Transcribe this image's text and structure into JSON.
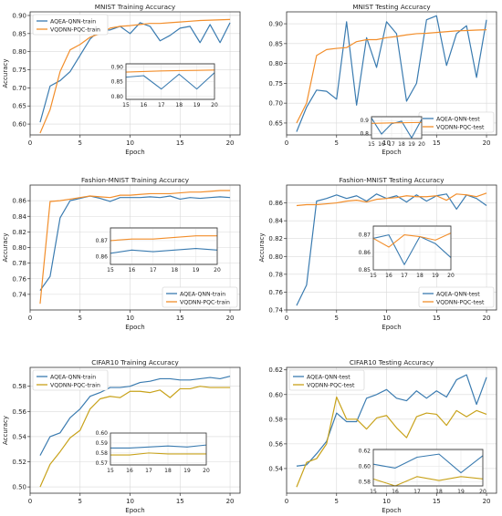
{
  "colors": {
    "aqea": "#3a7bb0",
    "vqdnn": "#f28e2b",
    "vqdnn_cifar": "#c8a21a"
  },
  "chart_data": [
    {
      "type": "line",
      "title": "MNIST Training Accuracy",
      "xlabel": "Epoch",
      "ylabel": "Accuracy",
      "xlim": [
        0,
        21
      ],
      "ylim": [
        0.57,
        0.91
      ],
      "xticks": [
        0,
        5,
        10,
        15,
        20
      ],
      "yticks": [
        0.6,
        0.65,
        0.7,
        0.75,
        0.8,
        0.85,
        0.9
      ],
      "ytick_labels": [
        "0.60",
        "0.65",
        "0.70",
        "0.75",
        "0.80",
        "0.85",
        "0.90"
      ],
      "grid": true,
      "legend_position": "upper-left",
      "x": [
        1,
        2,
        3,
        4,
        5,
        6,
        7,
        8,
        9,
        10,
        11,
        12,
        13,
        14,
        15,
        16,
        17,
        18,
        19,
        20
      ],
      "series": [
        {
          "name": "AQEA-QNN-train",
          "color": "#3a7bb0",
          "values": [
            0.605,
            0.705,
            0.72,
            0.745,
            0.79,
            0.835,
            0.86,
            0.86,
            0.87,
            0.85,
            0.88,
            0.87,
            0.83,
            0.845,
            0.865,
            0.87,
            0.825,
            0.875,
            0.825,
            0.88
          ]
        },
        {
          "name": "VQDNN-PQC-train",
          "color": "#f28e2b",
          "values": [
            0.575,
            0.64,
            0.745,
            0.805,
            0.82,
            0.84,
            0.85,
            0.865,
            0.87,
            0.872,
            0.875,
            0.878,
            0.878,
            0.88,
            0.882,
            0.884,
            0.886,
            0.887,
            0.888,
            0.889
          ]
        }
      ],
      "inset": {
        "xlim": [
          15,
          20
        ],
        "ylim": [
          0.79,
          0.91
        ],
        "xticks": [
          15,
          16,
          17,
          18,
          19,
          20
        ],
        "yticks": [
          0.8,
          0.85,
          0.9
        ],
        "ytick_labels": [
          "0.80",
          "0.85",
          "0.90"
        ]
      }
    },
    {
      "type": "line",
      "title": "MNIST Testing Accuracy",
      "xlabel": "Epoch",
      "ylabel": "",
      "xlim": [
        0,
        21
      ],
      "ylim": [
        0.62,
        0.93
      ],
      "xticks": [
        0,
        5,
        10,
        15,
        20
      ],
      "yticks": [
        0.65,
        0.7,
        0.75,
        0.8,
        0.85,
        0.9
      ],
      "ytick_labels": [
        "0.65",
        "0.70",
        "0.75",
        "0.80",
        "0.85",
        "0.90"
      ],
      "grid": true,
      "legend_position": "lower-right",
      "x": [
        1,
        2,
        3,
        4,
        5,
        6,
        7,
        8,
        9,
        10,
        11,
        12,
        13,
        14,
        15,
        16,
        17,
        18,
        19,
        20
      ],
      "series": [
        {
          "name": "AQEA-QNN-test",
          "color": "#3a7bb0",
          "values": [
            0.628,
            0.69,
            0.733,
            0.73,
            0.71,
            0.905,
            0.695,
            0.865,
            0.79,
            0.905,
            0.875,
            0.705,
            0.75,
            0.91,
            0.92,
            0.795,
            0.875,
            0.895,
            0.765,
            0.91
          ]
        },
        {
          "name": "VQDNN-PQC-test",
          "color": "#f28e2b",
          "values": [
            0.65,
            0.7,
            0.82,
            0.835,
            0.838,
            0.84,
            0.855,
            0.86,
            0.86,
            0.865,
            0.868,
            0.872,
            0.875,
            0.876,
            0.878,
            0.88,
            0.882,
            0.883,
            0.884,
            0.885
          ]
        }
      ],
      "inset": {
        "xlim": [
          15,
          20
        ],
        "ylim": [
          0.76,
          0.93
        ],
        "xticks": [
          15,
          16,
          17,
          18,
          19,
          20
        ],
        "yticks": [
          0.8,
          0.9
        ],
        "ytick_labels": [
          "0.8",
          "0.9"
        ]
      }
    },
    {
      "type": "line",
      "title": "Fashion-MNIST Training Accuracy",
      "xlabel": "Epoch",
      "ylabel": "Accuracy",
      "xlim": [
        0,
        21
      ],
      "ylim": [
        0.72,
        0.88
      ],
      "xticks": [
        0,
        5,
        10,
        15,
        20
      ],
      "yticks": [
        0.74,
        0.76,
        0.78,
        0.8,
        0.82,
        0.84,
        0.86
      ],
      "ytick_labels": [
        "0.74",
        "0.76",
        "0.78",
        "0.80",
        "0.82",
        "0.84",
        "0.86"
      ],
      "grid": true,
      "legend_position": "lower-right",
      "x": [
        1,
        2,
        3,
        4,
        5,
        6,
        7,
        8,
        9,
        10,
        11,
        12,
        13,
        14,
        15,
        16,
        17,
        18,
        19,
        20
      ],
      "series": [
        {
          "name": "AQEA-QNN-train",
          "color": "#3a7bb0",
          "values": [
            0.745,
            0.763,
            0.838,
            0.86,
            0.863,
            0.866,
            0.863,
            0.859,
            0.864,
            0.864,
            0.864,
            0.865,
            0.864,
            0.866,
            0.862,
            0.864,
            0.863,
            0.864,
            0.865,
            0.864
          ]
        },
        {
          "name": "VQDNN-PQC-train",
          "color": "#f28e2b",
          "values": [
            0.728,
            0.859,
            0.86,
            0.862,
            0.864,
            0.866,
            0.865,
            0.864,
            0.867,
            0.867,
            0.868,
            0.869,
            0.869,
            0.869,
            0.87,
            0.871,
            0.871,
            0.872,
            0.873,
            0.873
          ]
        }
      ],
      "inset": {
        "xlim": [
          15,
          20
        ],
        "ylim": [
          0.855,
          0.878
        ],
        "xticks": [
          15,
          16,
          17,
          18,
          19,
          20
        ],
        "yticks": [
          0.86,
          0.87
        ],
        "ytick_labels": [
          "0.86",
          "0.87"
        ]
      }
    },
    {
      "type": "line",
      "title": "Fashion-MNIST Testing Accuracy",
      "xlabel": "Epoch",
      "ylabel": "Accuracy",
      "xlim": [
        0,
        21
      ],
      "ylim": [
        0.74,
        0.88
      ],
      "xticks": [
        0,
        5,
        10,
        15,
        20
      ],
      "yticks": [
        0.74,
        0.76,
        0.78,
        0.8,
        0.82,
        0.84,
        0.86
      ],
      "ytick_labels": [
        "0.74",
        "0.76",
        "0.78",
        "0.80",
        "0.82",
        "0.84",
        "0.86"
      ],
      "grid": true,
      "legend_position": "lower-right",
      "x": [
        1,
        2,
        3,
        4,
        5,
        6,
        7,
        8,
        9,
        10,
        11,
        12,
        13,
        14,
        15,
        16,
        17,
        18,
        19,
        20
      ],
      "series": [
        {
          "name": "AQEA-QNN-test",
          "color": "#3a7bb0",
          "values": [
            0.745,
            0.768,
            0.862,
            0.865,
            0.869,
            0.865,
            0.868,
            0.862,
            0.87,
            0.865,
            0.868,
            0.861,
            0.869,
            0.862,
            0.868,
            0.87,
            0.853,
            0.869,
            0.865,
            0.857
          ]
        },
        {
          "name": "VQDNN-PQC-test",
          "color": "#f28e2b",
          "values": [
            0.857,
            0.858,
            0.858,
            0.859,
            0.86,
            0.862,
            0.863,
            0.861,
            0.864,
            0.865,
            0.866,
            0.868,
            0.867,
            0.867,
            0.868,
            0.863,
            0.87,
            0.869,
            0.867,
            0.871
          ]
        }
      ],
      "inset": {
        "xlim": [
          15,
          20
        ],
        "ylim": [
          0.85,
          0.875
        ],
        "xticks": [
          15,
          16,
          17,
          18,
          19,
          20
        ],
        "yticks": [
          0.85,
          0.86,
          0.87
        ],
        "ytick_labels": [
          "0.85",
          "0.86",
          "0.87"
        ]
      }
    },
    {
      "type": "line",
      "title": "CIFAR10 Training Accuracy",
      "xlabel": "Epoch",
      "ylabel": "Accuracy",
      "xlim": [
        0,
        21
      ],
      "ylim": [
        0.495,
        0.595
      ],
      "xticks": [
        0,
        5,
        10,
        15,
        20
      ],
      "yticks": [
        0.5,
        0.52,
        0.54,
        0.56,
        0.58
      ],
      "ytick_labels": [
        "0.50",
        "0.52",
        "0.54",
        "0.56",
        "0.58"
      ],
      "grid": true,
      "legend_position": "upper-left",
      "x": [
        1,
        2,
        3,
        4,
        5,
        6,
        7,
        8,
        9,
        10,
        11,
        12,
        13,
        14,
        15,
        16,
        17,
        18,
        19,
        20
      ],
      "series": [
        {
          "name": "AQEA-QNN-train",
          "color": "#3a7bb0",
          "values": [
            0.525,
            0.54,
            0.543,
            0.555,
            0.562,
            0.572,
            0.575,
            0.579,
            0.579,
            0.58,
            0.583,
            0.584,
            0.586,
            0.586,
            0.585,
            0.585,
            0.586,
            0.587,
            0.586,
            0.588
          ]
        },
        {
          "name": "VQDNN-PQC-train",
          "color": "#c8a21a",
          "values": [
            0.5,
            0.518,
            0.528,
            0.539,
            0.545,
            0.562,
            0.57,
            0.572,
            0.571,
            0.576,
            0.576,
            0.575,
            0.577,
            0.571,
            0.578,
            0.578,
            0.58,
            0.579,
            0.579,
            0.579
          ]
        }
      ],
      "inset": {
        "xlim": [
          15,
          20
        ],
        "ylim": [
          0.568,
          0.6
        ],
        "xticks": [
          15,
          16,
          17,
          18,
          19,
          20
        ],
        "yticks": [
          0.57,
          0.58,
          0.59,
          0.6
        ],
        "ytick_labels": [
          "0.57",
          "0.58",
          "0.59",
          "0.60"
        ]
      }
    },
    {
      "type": "line",
      "title": "CIFAR10 Testing Accuracy",
      "xlabel": "Epoch",
      "ylabel": "",
      "xlim": [
        0,
        21
      ],
      "ylim": [
        0.52,
        0.622
      ],
      "xticks": [
        0,
        5,
        10,
        15,
        20
      ],
      "yticks": [
        0.54,
        0.56,
        0.58,
        0.6,
        0.62
      ],
      "ytick_labels": [
        "0.54",
        "0.56",
        "0.58",
        "0.60",
        "0.62"
      ],
      "grid": true,
      "legend_position": "upper-left",
      "x": [
        1,
        2,
        3,
        4,
        5,
        6,
        7,
        8,
        9,
        10,
        11,
        12,
        13,
        14,
        15,
        16,
        17,
        18,
        19,
        20
      ],
      "series": [
        {
          "name": "AQEA-QNN-test",
          "color": "#3a7bb0",
          "values": [
            0.542,
            0.543,
            0.552,
            0.562,
            0.585,
            0.578,
            0.578,
            0.597,
            0.6,
            0.604,
            0.597,
            0.595,
            0.603,
            0.597,
            0.603,
            0.598,
            0.612,
            0.616,
            0.592,
            0.614
          ]
        },
        {
          "name": "VQDNN-PQC-test",
          "color": "#c8a21a",
          "values": [
            0.525,
            0.545,
            0.548,
            0.56,
            0.598,
            0.58,
            0.58,
            0.572,
            0.581,
            0.583,
            0.573,
            0.565,
            0.582,
            0.585,
            0.584,
            0.575,
            0.587,
            0.582,
            0.587,
            0.584
          ]
        }
      ],
      "inset": {
        "xlim": [
          15,
          20
        ],
        "ylim": [
          0.575,
          0.622
        ],
        "xticks": [
          15,
          16,
          17,
          18,
          19,
          20
        ],
        "yticks": [
          0.58,
          0.6,
          0.62
        ],
        "ytick_labels": [
          "0.58",
          "0.60",
          "0.62"
        ]
      }
    }
  ]
}
